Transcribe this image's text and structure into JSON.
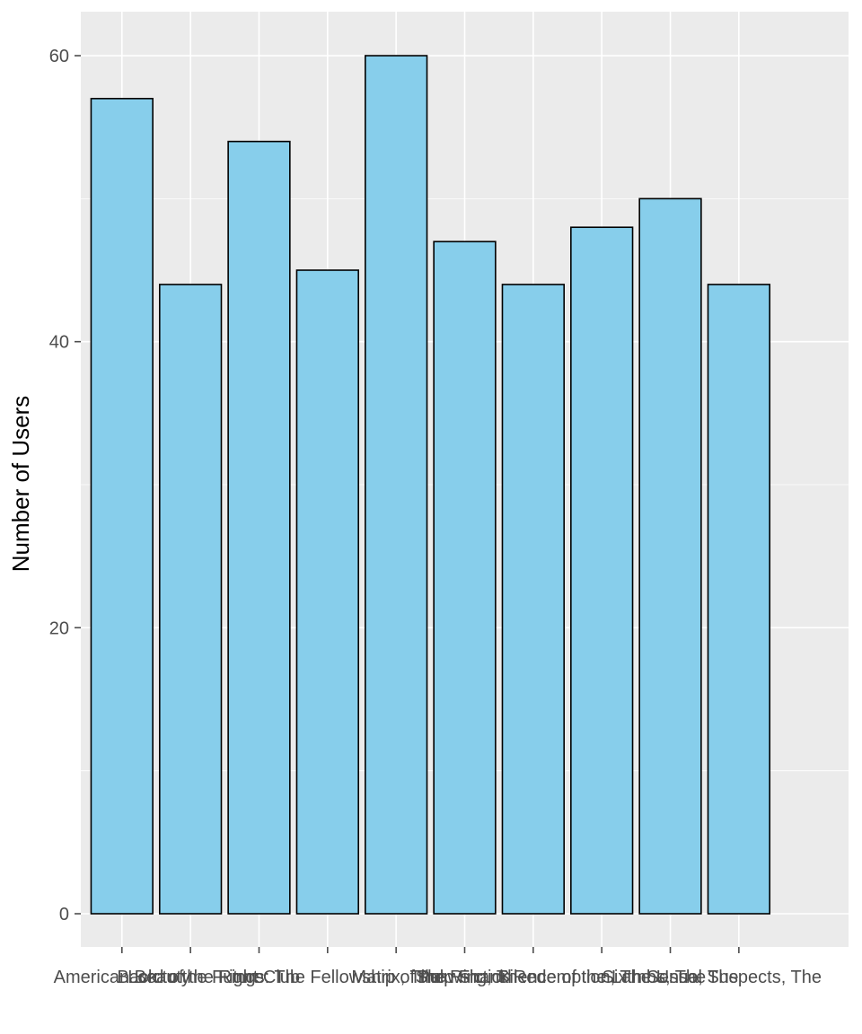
{
  "chart_data": {
    "type": "bar",
    "title": "",
    "xlabel": "",
    "ylabel": "Number of Users",
    "categories": [
      "American Beauty",
      "Back to the Future",
      "Fight Club",
      "Lord of the Rings: The Fellowship of the Ring, The",
      "Matrix, The",
      "Pulp Fiction",
      "Shawshank Redemption, The",
      "Silence of the Lambs, The",
      "Sixth Sense, The",
      "Usual Suspects, The"
    ],
    "values": [
      57,
      44,
      54,
      45,
      60,
      47,
      44,
      48,
      50,
      44
    ],
    "ylim": [
      0,
      60
    ],
    "yticks": [
      0,
      20,
      40,
      60
    ],
    "ytick_labels": [
      "0",
      "20",
      "40",
      "60"
    ],
    "yticks_minor": [
      10,
      30,
      50
    ],
    "grid": "on",
    "legend": "none",
    "style": "ggplot2",
    "colors": {
      "bar_fill": "#87CEEB",
      "bar_stroke": "#000000",
      "panel_background": "#EBEBEB",
      "gridline": "#FFFFFF",
      "axis_text": "#4D4D4D",
      "axis_title": "#000000",
      "tick_mark": "#4D4D4D",
      "figure_background": "#FFFFFF"
    }
  }
}
